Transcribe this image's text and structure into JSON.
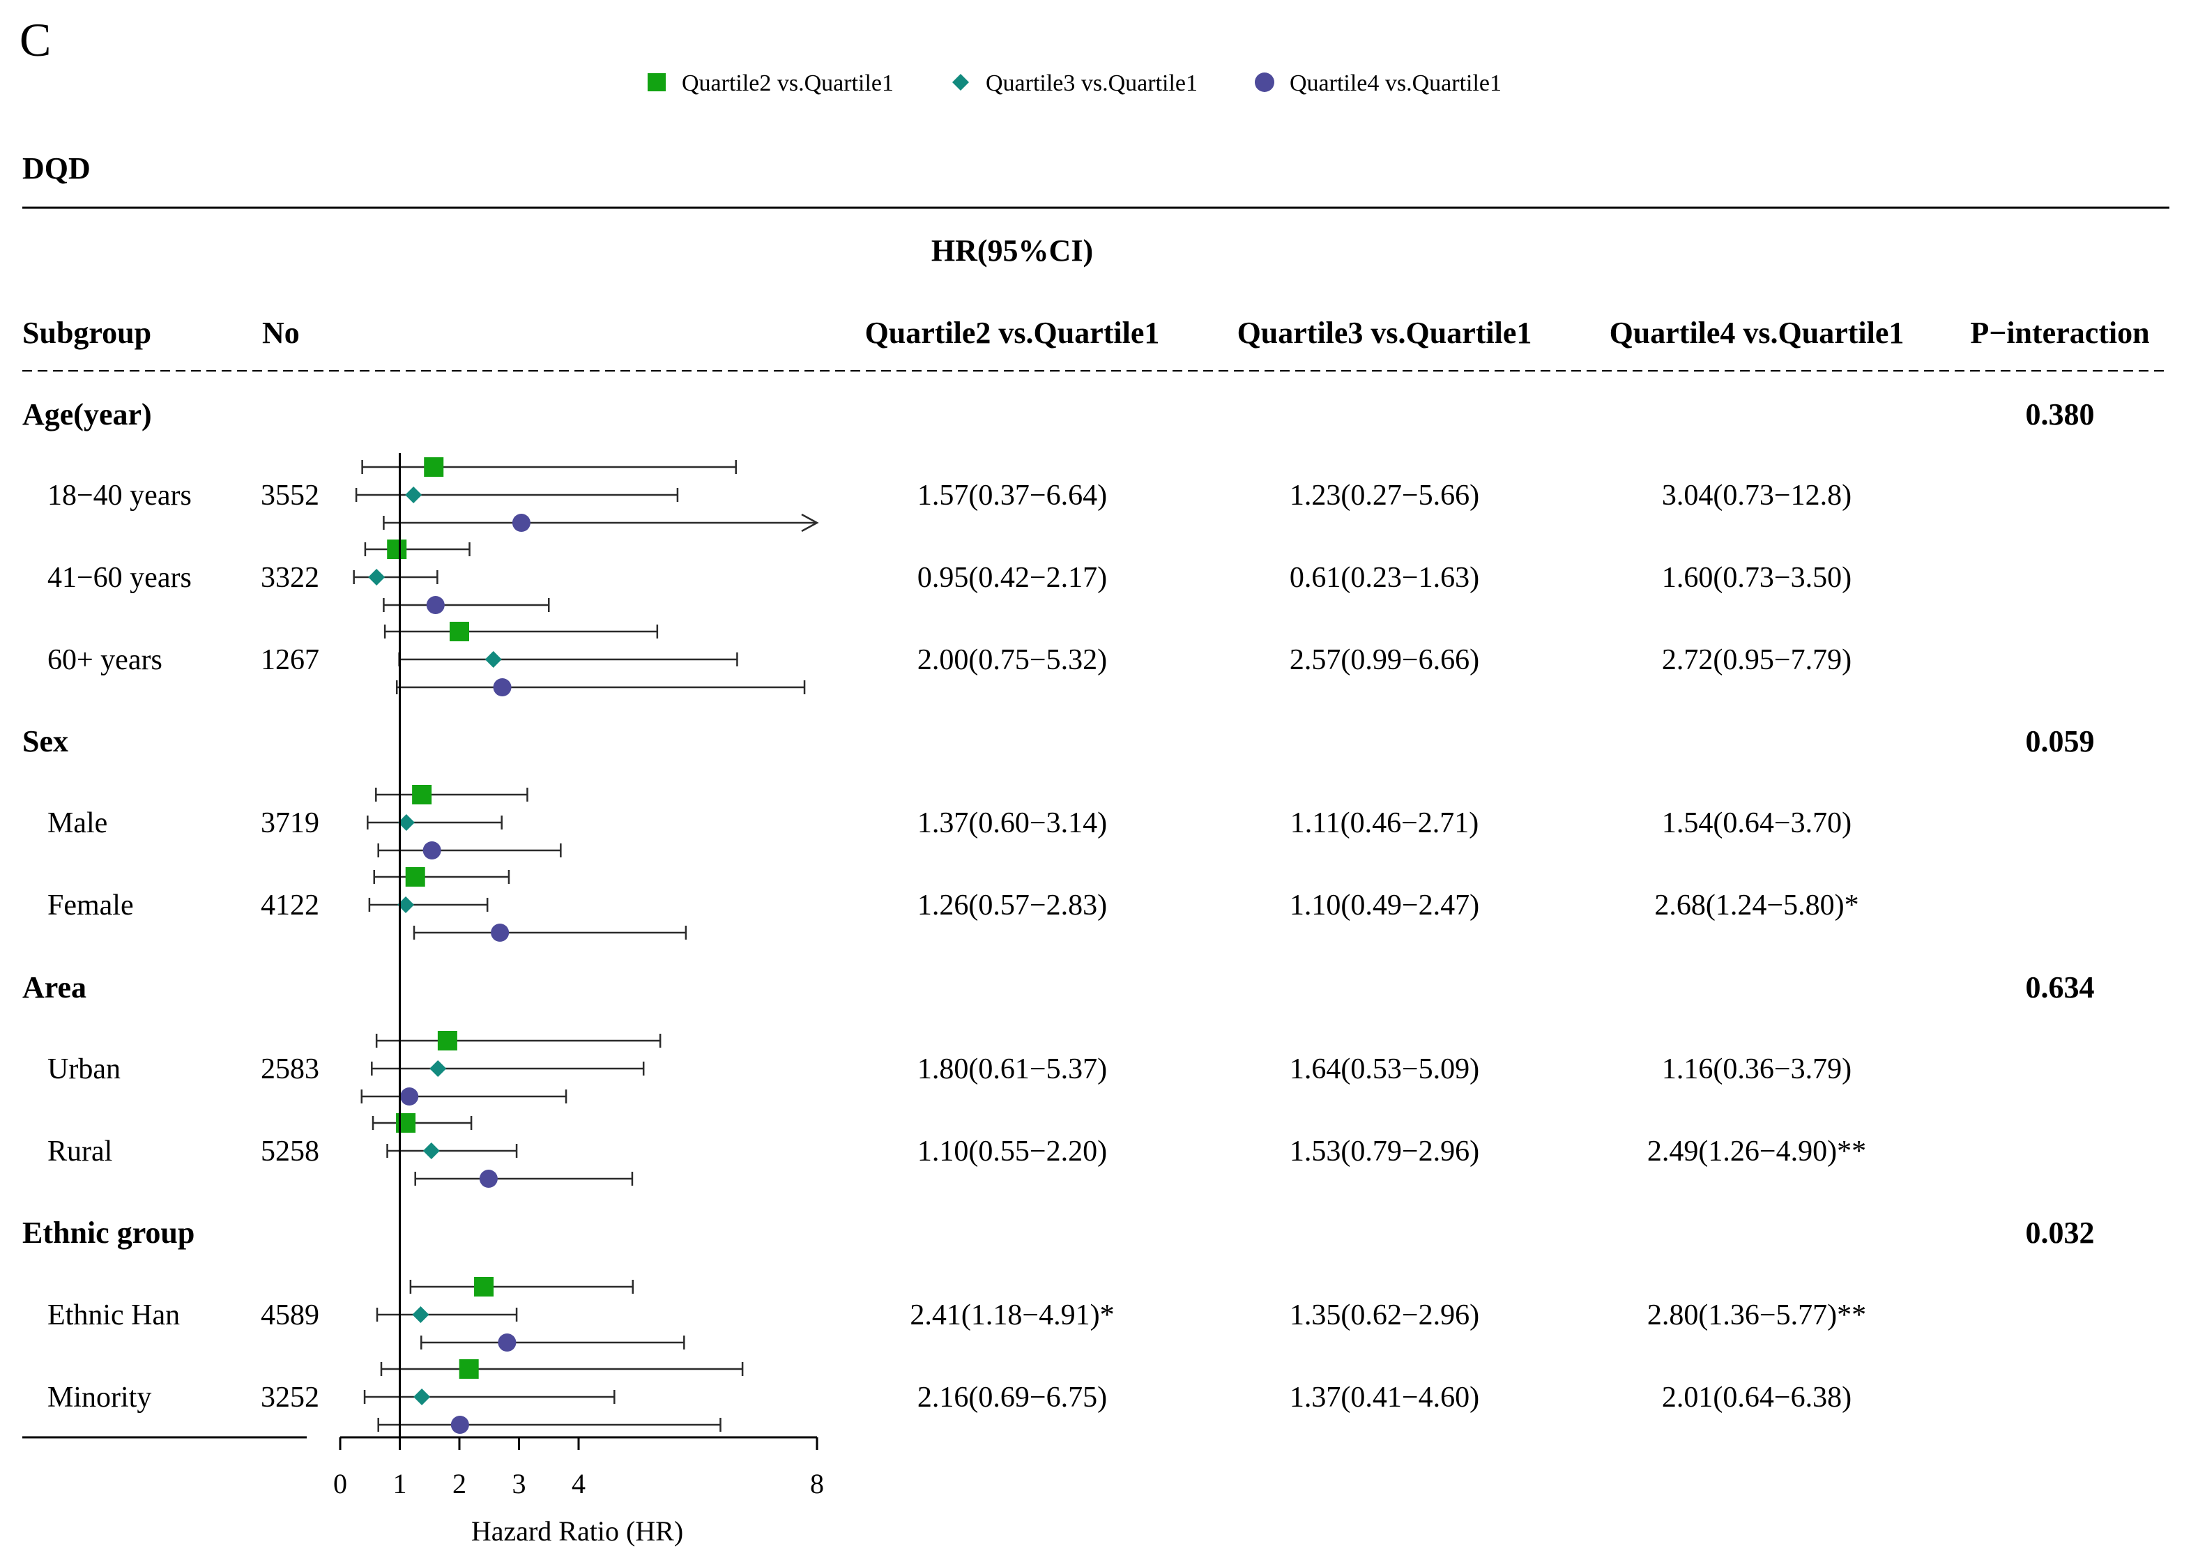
{
  "figure": {
    "panel_label": "C",
    "dataset_label": "DQD",
    "hr_header": "HR(95%CI)",
    "columns": {
      "subgroup": "Subgroup",
      "no": "No",
      "q2": "Quartile2 vs.Quartile1",
      "q3": "Quartile3 vs.Quartile1",
      "q4": "Quartile4 vs.Quartile1",
      "p": "P−interaction"
    },
    "legend": [
      {
        "label": "Quartile2 vs.Quartile1",
        "color": "#12a312",
        "shape": "square"
      },
      {
        "label": "Quartile3 vs.Quartile1",
        "color": "#128a7e",
        "shape": "diamond"
      },
      {
        "label": "Quartile4 vs.Quartile1",
        "color": "#4d4a9a",
        "shape": "circle"
      }
    ]
  },
  "chart_data": {
    "type": "forest",
    "title": "DQD",
    "xlabel": "Hazard Ratio (HR)",
    "xlim": [
      0,
      8
    ],
    "xticks": [
      0,
      1,
      2,
      3,
      4,
      8
    ],
    "reference_line": 1,
    "series": [
      "Quartile2 vs.Quartile1",
      "Quartile3 vs.Quartile1",
      "Quartile4 vs.Quartile1"
    ],
    "groups": [
      {
        "name": "Age(year)",
        "p_interaction": "0.380",
        "rows": [
          {
            "label": "18−40 years",
            "n": "3552",
            "texts": [
              "1.57(0.37−6.64)",
              "1.23(0.27−5.66)",
              "3.04(0.73−12.8)"
            ],
            "hr": [
              [
                1.57,
                0.37,
                6.64
              ],
              [
                1.23,
                0.27,
                5.66
              ],
              [
                3.04,
                0.73,
                12.8
              ]
            ]
          },
          {
            "label": "41−60 years",
            "n": "3322",
            "texts": [
              "0.95(0.42−2.17)",
              "0.61(0.23−1.63)",
              "1.60(0.73−3.50)"
            ],
            "hr": [
              [
                0.95,
                0.42,
                2.17
              ],
              [
                0.61,
                0.23,
                1.63
              ],
              [
                1.6,
                0.73,
                3.5
              ]
            ]
          },
          {
            "label": "60+ years",
            "n": "1267",
            "texts": [
              "2.00(0.75−5.32)",
              "2.57(0.99−6.66)",
              "2.72(0.95−7.79)"
            ],
            "hr": [
              [
                2.0,
                0.75,
                5.32
              ],
              [
                2.57,
                0.99,
                6.66
              ],
              [
                2.72,
                0.95,
                7.79
              ]
            ]
          }
        ]
      },
      {
        "name": "Sex",
        "p_interaction": "0.059",
        "rows": [
          {
            "label": "Male",
            "n": "3719",
            "texts": [
              "1.37(0.60−3.14)",
              "1.11(0.46−2.71)",
              "1.54(0.64−3.70)"
            ],
            "hr": [
              [
                1.37,
                0.6,
                3.14
              ],
              [
                1.11,
                0.46,
                2.71
              ],
              [
                1.54,
                0.64,
                3.7
              ]
            ]
          },
          {
            "label": "Female",
            "n": "4122",
            "texts": [
              "1.26(0.57−2.83)",
              "1.10(0.49−2.47)",
              "2.68(1.24−5.80)*"
            ],
            "hr": [
              [
                1.26,
                0.57,
                2.83
              ],
              [
                1.1,
                0.49,
                2.47
              ],
              [
                2.68,
                1.24,
                5.8
              ]
            ]
          }
        ]
      },
      {
        "name": "Area",
        "p_interaction": "0.634",
        "rows": [
          {
            "label": "Urban",
            "n": "2583",
            "texts": [
              "1.80(0.61−5.37)",
              "1.64(0.53−5.09)",
              "1.16(0.36−3.79)"
            ],
            "hr": [
              [
                1.8,
                0.61,
                5.37
              ],
              [
                1.64,
                0.53,
                5.09
              ],
              [
                1.16,
                0.36,
                3.79
              ]
            ]
          },
          {
            "label": "Rural",
            "n": "5258",
            "texts": [
              "1.10(0.55−2.20)",
              "1.53(0.79−2.96)",
              "2.49(1.26−4.90)**"
            ],
            "hr": [
              [
                1.1,
                0.55,
                2.2
              ],
              [
                1.53,
                0.79,
                2.96
              ],
              [
                2.49,
                1.26,
                4.9
              ]
            ]
          }
        ]
      },
      {
        "name": "Ethnic group",
        "p_interaction": "0.032",
        "rows": [
          {
            "label": "Ethnic Han",
            "n": "4589",
            "texts": [
              "2.41(1.18−4.91)*",
              "1.35(0.62−2.96)",
              "2.80(1.36−5.77)**"
            ],
            "hr": [
              [
                2.41,
                1.18,
                4.91
              ],
              [
                1.35,
                0.62,
                2.96
              ],
              [
                2.8,
                1.36,
                5.77
              ]
            ]
          },
          {
            "label": "Minority",
            "n": "3252",
            "texts": [
              "2.16(0.69−6.75)",
              "1.37(0.41−4.60)",
              "2.01(0.64−6.38)"
            ],
            "hr": [
              [
                2.16,
                0.69,
                6.75
              ],
              [
                1.37,
                0.41,
                4.6
              ],
              [
                2.01,
                0.64,
                6.38
              ]
            ]
          }
        ]
      }
    ]
  }
}
